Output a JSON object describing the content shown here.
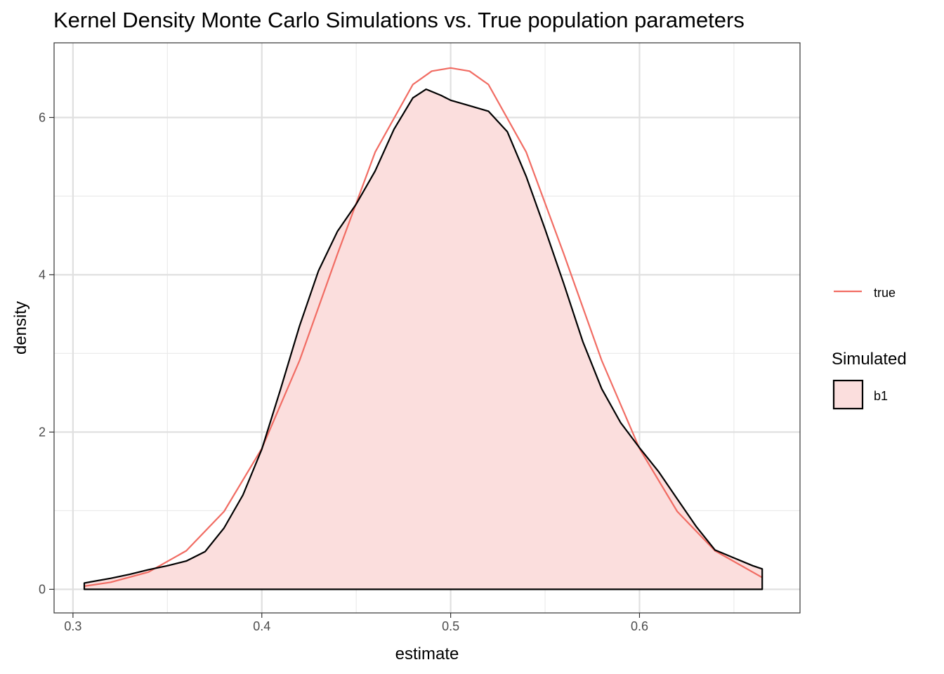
{
  "chart_data": {
    "type": "area",
    "title": "Kernel Density Monte Carlo Simulations vs. True population parameters",
    "xlabel": "estimate",
    "ylabel": "density",
    "xlim": [
      0.29,
      0.685
    ],
    "ylim": [
      -0.3,
      6.95
    ],
    "x_ticks": [
      0.3,
      0.4,
      0.5,
      0.6
    ],
    "x_tick_labels": [
      "0.3",
      "0.4",
      "0.5",
      "0.6"
    ],
    "y_ticks": [
      0,
      2,
      4,
      6
    ],
    "y_tick_labels": [
      "0",
      "2",
      "4",
      "6"
    ],
    "grid": true,
    "legend_position": "right",
    "series": [
      {
        "name": "b1",
        "kind": "density-filled",
        "fill": "#fbdedd",
        "stroke": "#000000",
        "x": [
          0.306,
          0.32,
          0.33,
          0.34,
          0.35,
          0.36,
          0.37,
          0.38,
          0.39,
          0.4,
          0.41,
          0.42,
          0.43,
          0.44,
          0.45,
          0.46,
          0.47,
          0.48,
          0.487,
          0.495,
          0.5,
          0.51,
          0.52,
          0.53,
          0.54,
          0.55,
          0.56,
          0.57,
          0.58,
          0.59,
          0.6,
          0.61,
          0.62,
          0.63,
          0.64,
          0.65,
          0.66,
          0.665
        ],
        "y": [
          0.08,
          0.14,
          0.19,
          0.25,
          0.3,
          0.36,
          0.48,
          0.78,
          1.2,
          1.78,
          2.55,
          3.35,
          4.05,
          4.55,
          4.9,
          5.32,
          5.85,
          6.25,
          6.36,
          6.28,
          6.22,
          6.15,
          6.08,
          5.82,
          5.25,
          4.58,
          3.88,
          3.15,
          2.55,
          2.12,
          1.8,
          1.5,
          1.15,
          0.8,
          0.5,
          0.4,
          0.3,
          0.26
        ]
      },
      {
        "name": "true",
        "kind": "line",
        "color": "#f16c63",
        "x": [
          0.306,
          0.32,
          0.34,
          0.36,
          0.38,
          0.4,
          0.42,
          0.44,
          0.46,
          0.48,
          0.49,
          0.5,
          0.51,
          0.52,
          0.54,
          0.56,
          0.58,
          0.6,
          0.62,
          0.64,
          0.665
        ],
        "y": [
          0.04,
          0.09,
          0.22,
          0.49,
          0.99,
          1.79,
          2.91,
          4.26,
          5.56,
          6.42,
          6.59,
          6.63,
          6.59,
          6.42,
          5.56,
          4.26,
          2.91,
          1.79,
          0.99,
          0.49,
          0.15
        ]
      }
    ],
    "legend": {
      "line_label": "true",
      "fill_title": "Simulated",
      "fill_label": "b1"
    }
  }
}
